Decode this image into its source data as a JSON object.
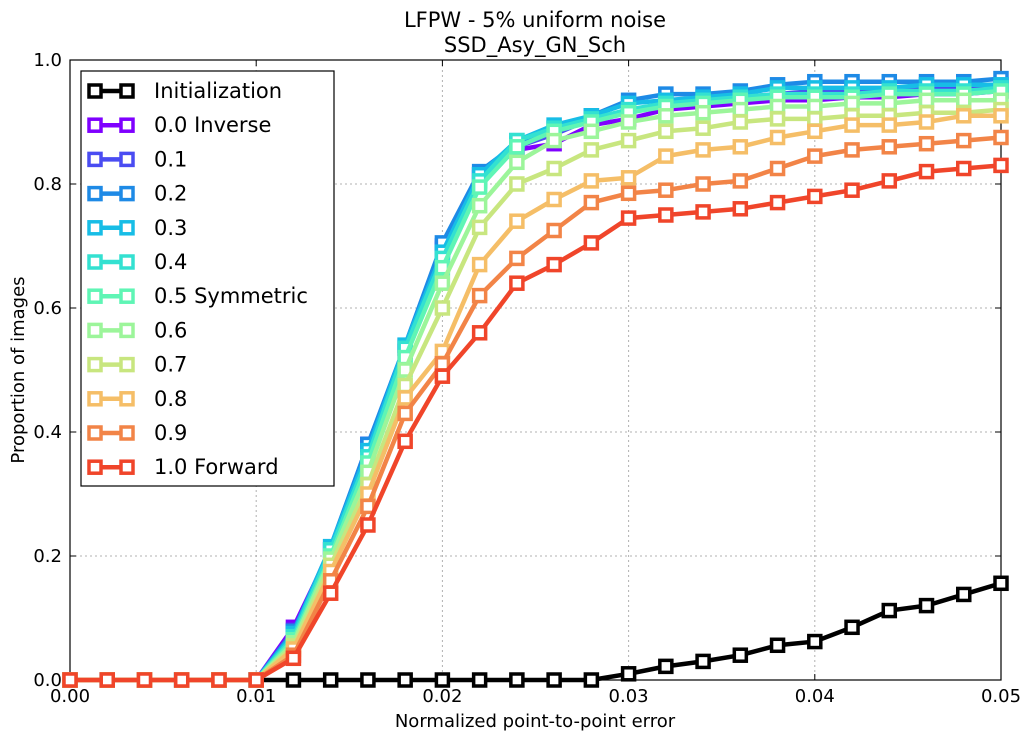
{
  "chart_data": {
    "type": "line",
    "title": "LFPW - 5% uniform noise",
    "subtitle": "SSD_Asy_GN_Sch",
    "xlabel": "Normalized point-to-point error",
    "ylabel": "Proportion of images",
    "xlim": [
      0.0,
      0.05
    ],
    "ylim": [
      0.0,
      1.0
    ],
    "grid": true,
    "legend_position": "upper-left",
    "x_ticks": [
      "0.00",
      "0.01",
      "0.02",
      "0.03",
      "0.04",
      "0.05"
    ],
    "y_ticks": [
      "0.0",
      "0.2",
      "0.4",
      "0.6",
      "0.8",
      "1.0"
    ],
    "x": [
      0.0,
      0.002,
      0.004,
      0.006,
      0.008,
      0.01,
      0.012,
      0.014,
      0.016,
      0.018,
      0.02,
      0.022,
      0.024,
      0.026,
      0.028,
      0.03,
      0.032,
      0.034,
      0.036,
      0.038,
      0.04,
      0.042,
      0.044,
      0.046,
      0.048,
      0.05
    ],
    "series": [
      {
        "name": "Initialization",
        "color": "#000000",
        "values": [
          0,
          0,
          0,
          0,
          0,
          0,
          0,
          0,
          0,
          0,
          0,
          0,
          0,
          0,
          0,
          0.01,
          0.022,
          0.03,
          0.04,
          0.056,
          0.062,
          0.085,
          0.112,
          0.12,
          0.138,
          0.156
        ]
      },
      {
        "name": "0.0 Inverse",
        "color": "#7f00ff",
        "values": [
          0,
          0,
          0,
          0,
          0,
          0,
          0.085,
          0.21,
          0.38,
          0.53,
          0.695,
          0.81,
          0.855,
          0.865,
          0.895,
          0.905,
          0.92,
          0.925,
          0.93,
          0.935,
          0.935,
          0.94,
          0.94,
          0.945,
          0.945,
          0.95
        ]
      },
      {
        "name": "0.1",
        "color": "#4a4cf2",
        "values": [
          0,
          0,
          0,
          0,
          0,
          0,
          0.08,
          0.21,
          0.38,
          0.535,
          0.7,
          0.815,
          0.86,
          0.88,
          0.905,
          0.915,
          0.93,
          0.935,
          0.94,
          0.945,
          0.95,
          0.95,
          0.955,
          0.955,
          0.955,
          0.96
        ]
      },
      {
        "name": "0.2",
        "color": "#1e8ae6",
        "values": [
          0,
          0,
          0,
          0,
          0,
          0,
          0.078,
          0.215,
          0.38,
          0.54,
          0.705,
          0.82,
          0.865,
          0.89,
          0.91,
          0.935,
          0.945,
          0.945,
          0.95,
          0.96,
          0.965,
          0.965,
          0.965,
          0.965,
          0.965,
          0.97
        ]
      },
      {
        "name": "0.3",
        "color": "#17bde6",
        "values": [
          0,
          0,
          0,
          0,
          0,
          0,
          0.075,
          0.215,
          0.37,
          0.54,
          0.69,
          0.815,
          0.87,
          0.895,
          0.91,
          0.93,
          0.935,
          0.94,
          0.945,
          0.955,
          0.955,
          0.955,
          0.955,
          0.96,
          0.96,
          0.96
        ]
      },
      {
        "name": "0.4",
        "color": "#33e1d1",
        "values": [
          0,
          0,
          0,
          0,
          0,
          0,
          0.07,
          0.21,
          0.36,
          0.535,
          0.68,
          0.805,
          0.87,
          0.89,
          0.905,
          0.92,
          0.93,
          0.935,
          0.94,
          0.945,
          0.945,
          0.945,
          0.95,
          0.95,
          0.95,
          0.955
        ]
      },
      {
        "name": "0.5 Symmetric",
        "color": "#5ff5b5",
        "values": [
          0,
          0,
          0,
          0,
          0,
          0,
          0.065,
          0.2,
          0.35,
          0.52,
          0.665,
          0.795,
          0.86,
          0.885,
          0.9,
          0.915,
          0.925,
          0.93,
          0.935,
          0.94,
          0.94,
          0.94,
          0.945,
          0.945,
          0.945,
          0.95
        ]
      },
      {
        "name": "0.6",
        "color": "#9cf59a",
        "values": [
          0,
          0,
          0,
          0,
          0,
          0,
          0.06,
          0.195,
          0.335,
          0.5,
          0.64,
          0.765,
          0.835,
          0.87,
          0.885,
          0.9,
          0.91,
          0.915,
          0.92,
          0.925,
          0.925,
          0.93,
          0.93,
          0.935,
          0.935,
          0.935
        ]
      },
      {
        "name": "0.7",
        "color": "#c8e67f",
        "values": [
          0,
          0,
          0,
          0,
          0,
          0,
          0.055,
          0.185,
          0.315,
          0.475,
          0.6,
          0.73,
          0.8,
          0.825,
          0.855,
          0.87,
          0.885,
          0.89,
          0.9,
          0.905,
          0.905,
          0.91,
          0.91,
          0.915,
          0.915,
          0.92
        ]
      },
      {
        "name": "0.8",
        "color": "#f5be67",
        "values": [
          0,
          0,
          0,
          0,
          0,
          0,
          0.05,
          0.175,
          0.3,
          0.455,
          0.53,
          0.67,
          0.74,
          0.775,
          0.805,
          0.81,
          0.845,
          0.855,
          0.86,
          0.875,
          0.885,
          0.895,
          0.895,
          0.9,
          0.91,
          0.91
        ]
      },
      {
        "name": "0.9",
        "color": "#f28447",
        "values": [
          0,
          0,
          0,
          0,
          0,
          0,
          0.04,
          0.16,
          0.28,
          0.43,
          0.51,
          0.62,
          0.68,
          0.725,
          0.77,
          0.785,
          0.79,
          0.8,
          0.805,
          0.825,
          0.845,
          0.855,
          0.86,
          0.865,
          0.87,
          0.875
        ]
      },
      {
        "name": "1.0 Forward",
        "color": "#f0452a",
        "values": [
          0,
          0,
          0,
          0,
          0,
          0,
          0.035,
          0.14,
          0.25,
          0.385,
          0.49,
          0.56,
          0.64,
          0.67,
          0.705,
          0.745,
          0.75,
          0.755,
          0.76,
          0.77,
          0.78,
          0.79,
          0.805,
          0.82,
          0.825,
          0.83
        ]
      }
    ]
  }
}
